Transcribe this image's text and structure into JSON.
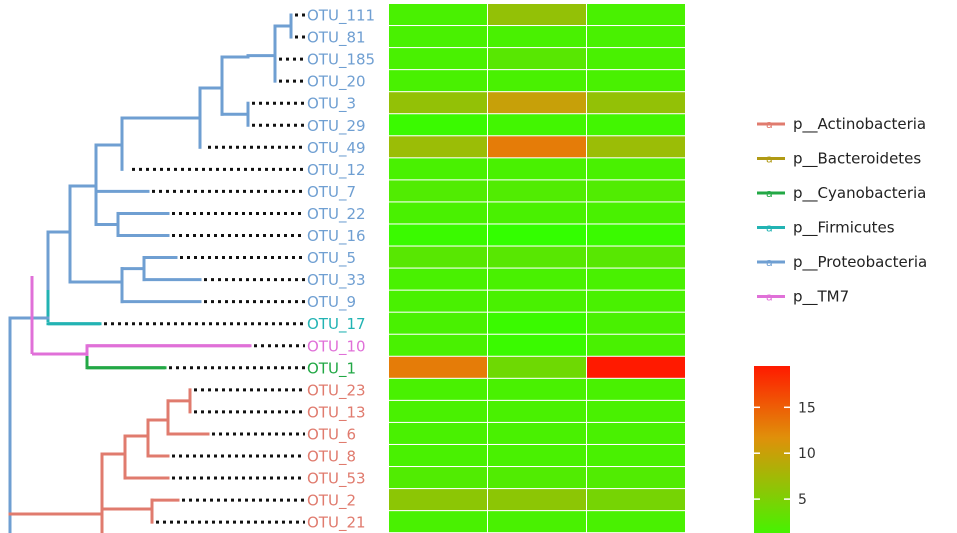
{
  "colors": {
    "actinobacteria": "#e07b6e",
    "bacteroidetes": "#b09a14",
    "cyanobacteria": "#22a845",
    "firmicutes": "#22b3b3",
    "proteobacteria": "#6f9fd2",
    "tm7": "#e070d8"
  },
  "chart_data": [
    {
      "type": "tree",
      "leaves": [
        {
          "label": "OTU_111",
          "phylum": "proteobacteria"
        },
        {
          "label": "OTU_81",
          "phylum": "proteobacteria"
        },
        {
          "label": "OTU_185",
          "phylum": "proteobacteria"
        },
        {
          "label": "OTU_20",
          "phylum": "proteobacteria"
        },
        {
          "label": "OTU_3",
          "phylum": "proteobacteria"
        },
        {
          "label": "OTU_29",
          "phylum": "proteobacteria"
        },
        {
          "label": "OTU_49",
          "phylum": "proteobacteria"
        },
        {
          "label": "OTU_12",
          "phylum": "proteobacteria"
        },
        {
          "label": "OTU_7",
          "phylum": "proteobacteria"
        },
        {
          "label": "OTU_22",
          "phylum": "proteobacteria"
        },
        {
          "label": "OTU_16",
          "phylum": "proteobacteria"
        },
        {
          "label": "OTU_5",
          "phylum": "proteobacteria"
        },
        {
          "label": "OTU_33",
          "phylum": "proteobacteria"
        },
        {
          "label": "OTU_9",
          "phylum": "proteobacteria"
        },
        {
          "label": "OTU_17",
          "phylum": "firmicutes"
        },
        {
          "label": "OTU_10",
          "phylum": "tm7"
        },
        {
          "label": "OTU_1",
          "phylum": "cyanobacteria"
        },
        {
          "label": "OTU_23",
          "phylum": "actinobacteria"
        },
        {
          "label": "OTU_13",
          "phylum": "actinobacteria"
        },
        {
          "label": "OTU_6",
          "phylum": "actinobacteria"
        },
        {
          "label": "OTU_8",
          "phylum": "actinobacteria"
        },
        {
          "label": "OTU_53",
          "phylum": "actinobacteria"
        },
        {
          "label": "OTU_2",
          "phylum": "actinobacteria"
        },
        {
          "label": "OTU_21",
          "phylum": "actinobacteria"
        }
      ],
      "legend": [
        {
          "key": "actinobacteria",
          "label": "p__Actinobacteria",
          "glyph": "a"
        },
        {
          "key": "bacteroidetes",
          "label": "p__Bacteroidetes",
          "glyph": "a"
        },
        {
          "key": "cyanobacteria",
          "label": "p__Cyanobacteria",
          "glyph": "a"
        },
        {
          "key": "firmicutes",
          "label": "p__Firmicutes",
          "glyph": "a"
        },
        {
          "key": "proteobacteria",
          "label": "p__Proteobacteria",
          "glyph": "a"
        },
        {
          "key": "tm7",
          "label": "p__TM7",
          "glyph": "a"
        }
      ]
    },
    {
      "type": "heatmap",
      "rows": [
        "OTU_111",
        "OTU_81",
        "OTU_185",
        "OTU_20",
        "OTU_3",
        "OTU_29",
        "OTU_49",
        "OTU_12",
        "OTU_7",
        "OTU_22",
        "OTU_16",
        "OTU_5",
        "OTU_33",
        "OTU_9",
        "OTU_17",
        "OTU_10",
        "OTU_1",
        "OTU_23",
        "OTU_13",
        "OTU_6",
        "OTU_8",
        "OTU_53",
        "OTU_2",
        "OTU_21"
      ],
      "columns": 3,
      "values": [
        [
          1.5,
          6.5,
          1.5
        ],
        [
          1.5,
          1.5,
          1.5
        ],
        [
          1.5,
          2.5,
          1.5
        ],
        [
          1.5,
          1.5,
          1.5
        ],
        [
          6.5,
          10,
          6.5
        ],
        [
          0.5,
          1,
          1
        ],
        [
          7,
          13,
          7
        ],
        [
          1.5,
          1.5,
          1.5
        ],
        [
          2,
          2,
          2
        ],
        [
          1.5,
          1.5,
          1.5
        ],
        [
          0.5,
          0,
          0.5
        ],
        [
          2.5,
          2.5,
          2.5
        ],
        [
          1.5,
          1.5,
          1.5
        ],
        [
          1.5,
          1.5,
          1.5
        ],
        [
          1.5,
          0.5,
          1.5
        ],
        [
          1.5,
          0.5,
          1.5
        ],
        [
          13,
          4,
          19.5
        ],
        [
          1.5,
          1.5,
          1.5
        ],
        [
          1.5,
          1.5,
          1.5
        ],
        [
          1.5,
          1.5,
          1.5
        ],
        [
          1.5,
          1.5,
          1.5
        ],
        [
          2,
          2,
          2
        ],
        [
          6,
          6,
          4.5
        ],
        [
          1.5,
          1.5,
          1.5
        ]
      ],
      "scale": {
        "min": 0,
        "max": 19.5,
        "ticks": [
          5,
          10,
          15
        ],
        "low": "#33ff00",
        "mid": "#e0900a",
        "high": "#ff1a00"
      }
    }
  ]
}
